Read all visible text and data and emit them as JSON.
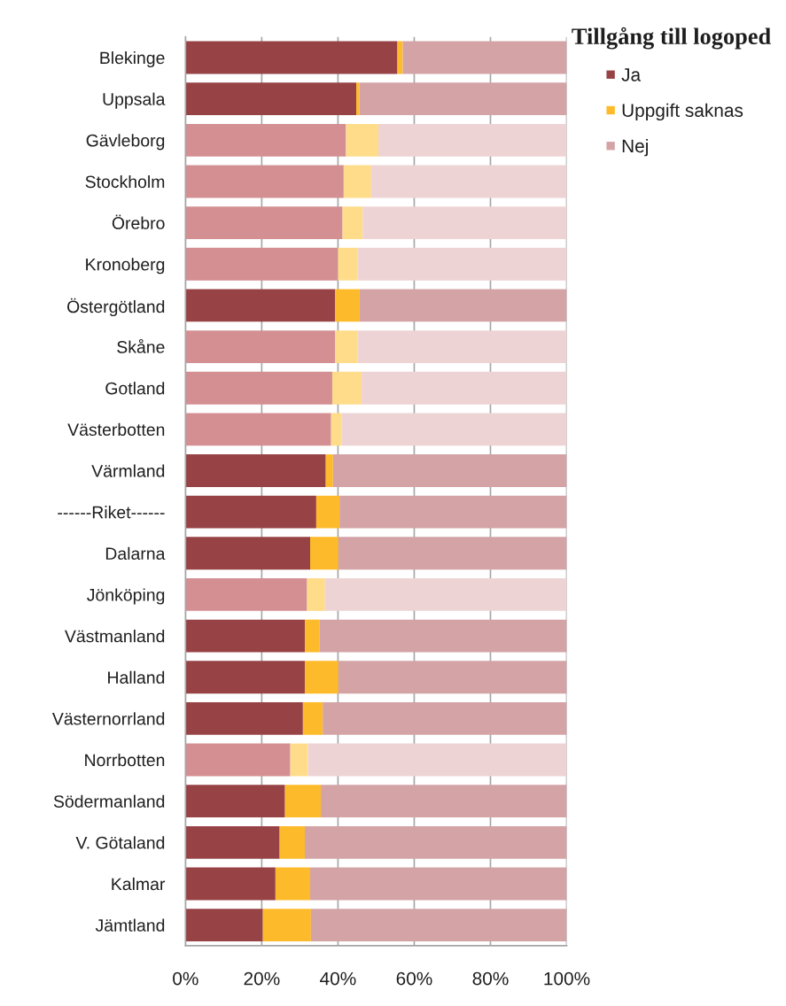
{
  "chart_data": {
    "type": "bar",
    "orientation": "horizontal",
    "stacked": true,
    "categories": [
      "Blekinge",
      "Uppsala",
      "Gävleborg",
      "Stockholm",
      "Örebro",
      "Kronoberg",
      "Östergötland",
      "Skåne",
      "Gotland",
      "Västerbotten",
      "Värmland",
      "------Riket------",
      "Dalarna",
      "Jönköping",
      "Västmanland",
      "Halland",
      "Västernorrland",
      "Norrbotten",
      "Södermanland",
      "V. Götaland",
      "Kalmar",
      "Jämtland"
    ],
    "series": [
      {
        "name": "Ja",
        "color": "#974346",
        "values": [
          55.6,
          44.8,
          42.1,
          41.5,
          41.2,
          40.0,
          39.3,
          39.3,
          38.5,
          38.2,
          36.8,
          34.3,
          32.7,
          31.9,
          31.3,
          31.3,
          30.8,
          27.5,
          26.1,
          24.7,
          23.6,
          20.3
        ],
        "colors": [
          "#974346",
          "#974346",
          "#d48f92",
          "#d48f92",
          "#d48f92",
          "#d48f92",
          "#974346",
          "#d48f92",
          "#d48f92",
          "#d48f92",
          "#974346",
          "#974346",
          "#974346",
          "#d48f92",
          "#974346",
          "#974346",
          "#974346",
          "#d48f92",
          "#974346",
          "#974346",
          "#974346",
          "#974346"
        ]
      },
      {
        "name": "Uppgift saknas",
        "color": "#fdbb2b",
        "values": [
          1.4,
          0.8,
          8.5,
          7.2,
          5.3,
          5.1,
          6.4,
          5.8,
          7.7,
          2.7,
          1.9,
          6.1,
          7.4,
          4.7,
          3.9,
          8.8,
          5.2,
          4.6,
          9.4,
          6.6,
          9.1,
          12.6
        ],
        "colors": [
          "#fdbb2b",
          "#fdbb2b",
          "#fedc8a",
          "#fedc8a",
          "#fedc8a",
          "#fedc8a",
          "#fdbb2b",
          "#fedc8a",
          "#fedc8a",
          "#fedc8a",
          "#fdbb2b",
          "#fdbb2b",
          "#fdbb2b",
          "#fedc8a",
          "#fdbb2b",
          "#fdbb2b",
          "#fdbb2b",
          "#fedc8a",
          "#fdbb2b",
          "#fdbb2b",
          "#fdbb2b",
          "#fdbb2b"
        ]
      },
      {
        "name": "Nej",
        "color": "#d3a3a6",
        "values": [
          43.0,
          54.4,
          49.4,
          51.3,
          53.5,
          54.9,
          54.3,
          54.9,
          53.8,
          59.1,
          61.3,
          59.6,
          59.9,
          63.4,
          64.8,
          59.9,
          64.0,
          67.9,
          64.5,
          68.7,
          67.3,
          67.1
        ],
        "colors": [
          "#d3a3a6",
          "#d3a3a6",
          "#eed3d4",
          "#eed3d4",
          "#eed3d4",
          "#eed3d4",
          "#d3a3a6",
          "#eed3d4",
          "#eed3d4",
          "#eed3d4",
          "#d3a3a6",
          "#d3a3a6",
          "#d3a3a6",
          "#eed3d4",
          "#d3a3a6",
          "#d3a3a6",
          "#d3a3a6",
          "#eed3d4",
          "#d3a3a6",
          "#d3a3a6",
          "#d3a3a6",
          "#d3a3a6"
        ]
      }
    ],
    "xlim": [
      0,
      100
    ],
    "xticks": [
      {
        "value": 0,
        "label": "0%"
      },
      {
        "value": 20,
        "label": "20%"
      },
      {
        "value": 40,
        "label": "40%"
      },
      {
        "value": 60,
        "label": "60%"
      },
      {
        "value": 80,
        "label": "80%"
      },
      {
        "value": 100,
        "label": "100%"
      }
    ],
    "legend_title": "Tillgång till logoped",
    "legend": "top right",
    "grid": "x"
  }
}
